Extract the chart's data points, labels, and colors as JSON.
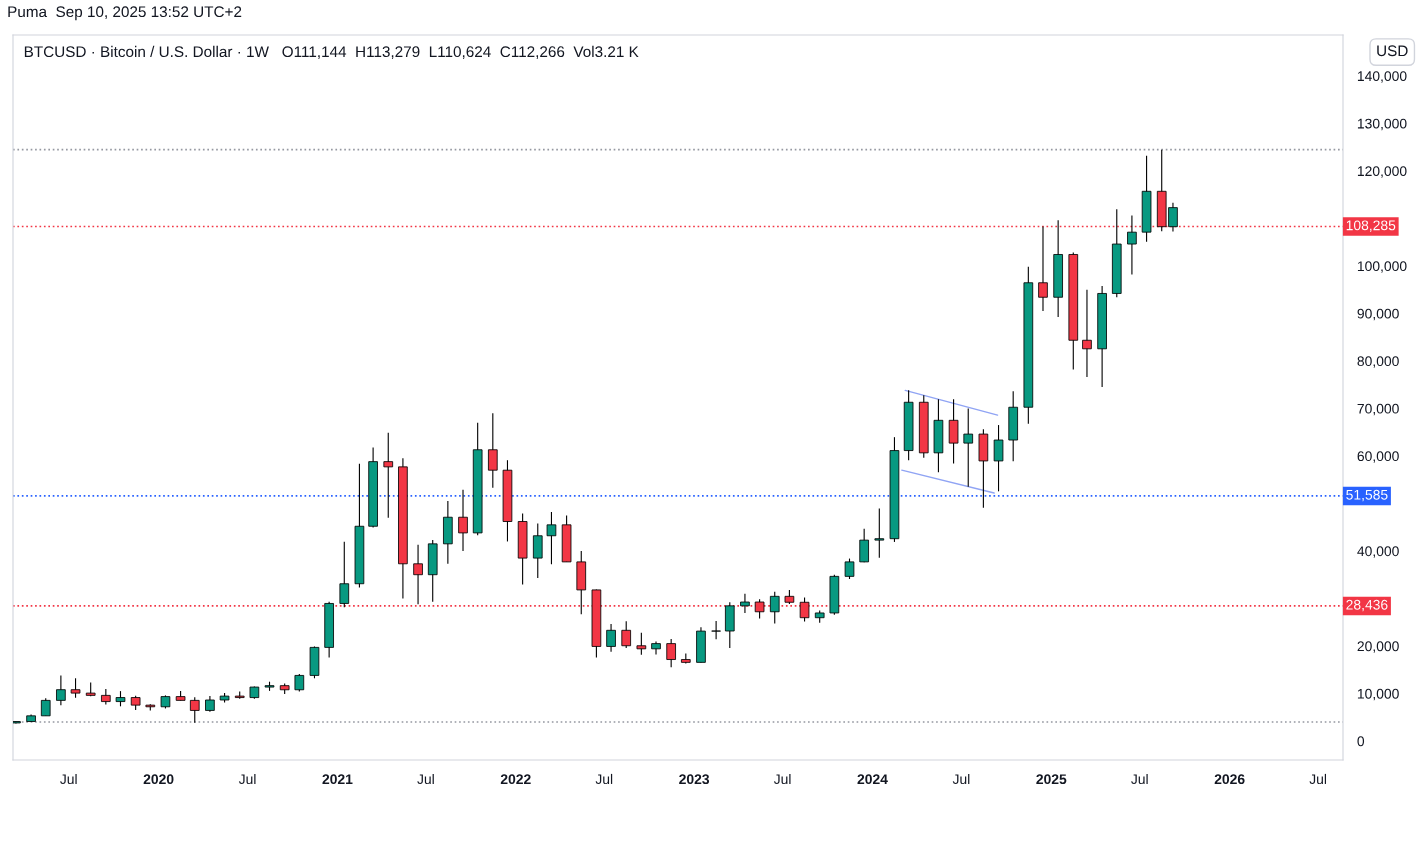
{
  "chart_data": {
    "type": "candlestick",
    "title": "BTCUSD · Bitcoin / U.S. Dollar · 1W   O111,144  H113,279  L110,624  C112,266  Vol3.21 K",
    "annotations": [
      "Puma  Sep 10, 2025 13:52 UTC+2",
      "USD"
    ],
    "x": [
      "2019-03-15",
      "2019-04-15",
      "2019-05-15",
      "2019-06-15",
      "2019-07-15",
      "2019-08-15",
      "2019-09-15",
      "2019-10-15",
      "2019-11-15",
      "2019-12-15",
      "2020-01-15",
      "2020-02-15",
      "2020-03-15",
      "2020-04-15",
      "2020-05-15",
      "2020-06-15",
      "2020-07-15",
      "2020-08-15",
      "2020-09-15",
      "2020-10-15",
      "2020-11-15",
      "2020-12-15",
      "2021-01-15",
      "2021-02-15",
      "2021-03-15",
      "2021-04-15",
      "2021-05-15",
      "2021-06-15",
      "2021-07-15",
      "2021-08-15",
      "2021-09-15",
      "2021-10-15",
      "2021-11-15",
      "2021-12-15",
      "2022-01-15",
      "2022-02-15",
      "2022-03-15",
      "2022-04-15",
      "2022-05-15",
      "2022-06-15",
      "2022-07-15",
      "2022-08-15",
      "2022-09-15",
      "2022-10-15",
      "2022-11-15",
      "2022-12-15",
      "2023-01-15",
      "2023-02-15",
      "2023-03-15",
      "2023-04-15",
      "2023-05-15",
      "2023-06-15",
      "2023-07-15",
      "2023-08-15",
      "2023-09-15",
      "2023-10-15",
      "2023-11-15",
      "2023-12-15",
      "2024-01-15",
      "2024-02-15",
      "2024-03-15",
      "2024-04-15",
      "2024-05-15",
      "2024-06-15",
      "2024-07-15",
      "2024-08-15",
      "2024-09-15",
      "2024-10-15",
      "2024-11-15",
      "2024-12-15",
      "2025-01-15",
      "2025-02-15",
      "2025-03-15",
      "2025-04-15",
      "2025-05-15",
      "2025-06-15",
      "2025-07-15",
      "2025-08-15",
      "2025-09-07"
    ],
    "colors": [
      "#089981",
      "#089981",
      "#089981",
      "#089981",
      "#f23645",
      "#f23645",
      "#f23645",
      "#089981",
      "#f23645",
      "#f23645",
      "#089981",
      "#f23645",
      "#f23645",
      "#089981",
      "#089981",
      "#f23645",
      "#089981",
      "#089981",
      "#f23645",
      "#089981",
      "#089981",
      "#089981",
      "#089981",
      "#089981",
      "#089981",
      "#f23645",
      "#f23645",
      "#f23645",
      "#089981",
      "#089981",
      "#f23645",
      "#089981",
      "#f23645",
      "#f23645",
      "#f23645",
      "#089981",
      "#089981",
      "#f23645",
      "#f23645",
      "#f23645",
      "#089981",
      "#f23645",
      "#f23645",
      "#089981",
      "#f23645",
      "#f23645",
      "#089981",
      "#089981",
      "#089981",
      "#089981",
      "#f23645",
      "#089981",
      "#f23645",
      "#f23645",
      "#089981",
      "#089981",
      "#089981",
      "#089981",
      "#089981",
      "#089981",
      "#089981",
      "#f23645",
      "#089981",
      "#f23645",
      "#089981",
      "#f23645",
      "#089981",
      "#089981",
      "#089981",
      "#f23645",
      "#089981",
      "#f23645",
      "#f23645",
      "#089981",
      "#089981",
      "#089981",
      "#089981",
      "#f23645",
      "#089981"
    ],
    "ohlc": [
      [
        3800,
        4100,
        3700,
        4100
      ],
      [
        4100,
        5600,
        4050,
        5300
      ],
      [
        5300,
        9000,
        5300,
        8550
      ],
      [
        8550,
        13800,
        7500,
        10800
      ],
      [
        10800,
        13200,
        9100,
        10080
      ],
      [
        10080,
        12300,
        9400,
        9600
      ],
      [
        9600,
        10950,
        7700,
        8300
      ],
      [
        8300,
        10500,
        7300,
        9150
      ],
      [
        9150,
        9500,
        6500,
        7550
      ],
      [
        7550,
        7750,
        6430,
        7200
      ],
      [
        7200,
        9600,
        6850,
        9350
      ],
      [
        9350,
        10500,
        8500,
        8550
      ],
      [
        8550,
        9200,
        3850,
        6430
      ],
      [
        6430,
        9450,
        6150,
        8630
      ],
      [
        8630,
        10080,
        8100,
        9450
      ],
      [
        9450,
        10400,
        8900,
        9140
      ],
      [
        9140,
        11450,
        8900,
        11350
      ],
      [
        11350,
        12480,
        10550,
        11650
      ],
      [
        11650,
        12080,
        9880,
        10780
      ],
      [
        10780,
        14100,
        10400,
        13800
      ],
      [
        13800,
        19900,
        13200,
        19700
      ],
      [
        19700,
        29300,
        17600,
        28950
      ],
      [
        28950,
        41950,
        28150,
        33100
      ],
      [
        33100,
        58350,
        32300,
        45200
      ],
      [
        45200,
        61780,
        44950,
        58800
      ],
      [
        58800,
        64900,
        47000,
        57700
      ],
      [
        57700,
        59500,
        30000,
        37300
      ],
      [
        37300,
        41300,
        28800,
        35000
      ],
      [
        35000,
        42300,
        29300,
        41500
      ],
      [
        41500,
        50500,
        37300,
        47100
      ],
      [
        47100,
        52900,
        40000,
        43800
      ],
      [
        43800,
        67000,
        43300,
        61300
      ],
      [
        61300,
        69000,
        53300,
        57000
      ],
      [
        57000,
        59100,
        42000,
        46200
      ],
      [
        46200,
        47900,
        32950,
        38500
      ],
      [
        38500,
        45800,
        34300,
        43200
      ],
      [
        43200,
        48200,
        37200,
        45500
      ],
      [
        45500,
        47450,
        37700,
        37700
      ],
      [
        37700,
        40000,
        26700,
        31800
      ],
      [
        31800,
        31900,
        17600,
        19900
      ],
      [
        19900,
        24650,
        18800,
        23300
      ],
      [
        23300,
        25200,
        19600,
        20050
      ],
      [
        20050,
        22800,
        18150,
        19400
      ],
      [
        19400,
        20950,
        18200,
        20500
      ],
      [
        20500,
        21450,
        15500,
        17150
      ],
      [
        17150,
        18400,
        16300,
        16550
      ],
      [
        16550,
        23950,
        16500,
        23130
      ],
      [
        23130,
        25250,
        21400,
        23150
      ],
      [
        23150,
        29200,
        19550,
        28450
      ],
      [
        28450,
        31000,
        26950,
        29250
      ],
      [
        29250,
        29850,
        25800,
        27200
      ],
      [
        27200,
        31400,
        24750,
        30450
      ],
      [
        30450,
        31800,
        28850,
        29200
      ],
      [
        29200,
        30200,
        25150,
        25950
      ],
      [
        25950,
        27450,
        24900,
        26950
      ],
      [
        26950,
        35000,
        26550,
        34650
      ],
      [
        34650,
        38400,
        34100,
        37700
      ],
      [
        37700,
        44700,
        37600,
        42280
      ],
      [
        42280,
        48950,
        38550,
        42580
      ],
      [
        42580,
        63950,
        41900,
        61130
      ],
      [
        61130,
        73800,
        59100,
        71300
      ],
      [
        71300,
        72750,
        59600,
        60650
      ],
      [
        60650,
        71950,
        56550,
        67500
      ],
      [
        67500,
        71950,
        58400,
        62700
      ],
      [
        62700,
        70000,
        53500,
        64600
      ],
      [
        64600,
        65600,
        49100,
        58950
      ],
      [
        58950,
        66500,
        52550,
        63350
      ],
      [
        63350,
        73600,
        58900,
        70250
      ],
      [
        70250,
        99800,
        66800,
        96450
      ],
      [
        96450,
        108300,
        90500,
        93400
      ],
      [
        93400,
        109600,
        89250,
        102400
      ],
      [
        102400,
        102800,
        78200,
        84350
      ],
      [
        84350,
        95000,
        76600,
        82550
      ],
      [
        82550,
        95750,
        74500,
        94200
      ],
      [
        94200,
        111900,
        93400,
        104600
      ],
      [
        104600,
        110600,
        98200,
        107100
      ],
      [
        107100,
        123200,
        105100,
        115700
      ],
      [
        115700,
        124450,
        107300,
        108250
      ],
      [
        108250,
        113300,
        107250,
        112266
      ]
    ],
    "series": [
      {
        "type": "line",
        "color": "#90a4f4",
        "x": [
          "2024-03-08",
          "2024-09-13"
        ],
        "values": [
          73800,
          68600
        ]
      },
      {
        "type": "line",
        "color": "#90a4f4",
        "x": [
          "2024-03-01",
          "2024-09-06"
        ],
        "values": [
          57000,
          52200
        ]
      }
    ],
    "ref_lines": [
      {
        "axis": "y",
        "value": 108285,
        "label": "108,285",
        "color": "#f23645",
        "line_style": "dotted"
      },
      {
        "axis": "y",
        "value": 51585,
        "label": "51,585",
        "color": "#2962ff",
        "line_style": "dotted"
      },
      {
        "axis": "y",
        "value": 28436,
        "label": "28,436",
        "color": "#f23645",
        "line_style": "dotted"
      },
      {
        "axis": "y",
        "value": 124457,
        "color": "#9598a1",
        "line_style": "dotted"
      },
      {
        "axis": "y",
        "value": 4000,
        "color": "#9598a1",
        "line_style": "dotted"
      }
    ],
    "xlim": [
      "2019-03-09",
      "2026-08-21"
    ],
    "xticks": [
      {
        "value": "2019-07-01",
        "label": "Jul"
      },
      {
        "value": "2020-01-01",
        "label": "2020"
      },
      {
        "value": "2020-07-01",
        "label": "Jul"
      },
      {
        "value": "2021-01-01",
        "label": "2021"
      },
      {
        "value": "2021-07-01",
        "label": "Jul"
      },
      {
        "value": "2022-01-01",
        "label": "2022"
      },
      {
        "value": "2022-07-01",
        "label": "Jul"
      },
      {
        "value": "2023-01-01",
        "label": "2023"
      },
      {
        "value": "2023-07-01",
        "label": "Jul"
      },
      {
        "value": "2024-01-01",
        "label": "2024"
      },
      {
        "value": "2024-07-01",
        "label": "Jul"
      },
      {
        "value": "2025-01-01",
        "label": "2025"
      },
      {
        "value": "2025-07-01",
        "label": "Jul"
      },
      {
        "value": "2026-01-01",
        "label": "2026"
      },
      {
        "value": "2026-07-01",
        "label": "Jul"
      }
    ],
    "ylim": [
      -4000,
      148600
    ],
    "yticks": [
      0,
      {
        "value": 10000,
        "label": "10,000"
      },
      {
        "value": 20000,
        "label": "20,000"
      },
      {
        "value": 40000,
        "label": "40,000"
      },
      {
        "value": 60000,
        "label": "60,000"
      },
      {
        "value": 70000,
        "label": "70,000"
      },
      {
        "value": 80000,
        "label": "80,000"
      },
      {
        "value": 90000,
        "label": "90,000"
      },
      {
        "value": 100000,
        "label": "100,000"
      },
      {
        "value": 120000,
        "label": "120,000"
      },
      {
        "value": 130000,
        "label": "130,000"
      },
      {
        "value": 140000,
        "label": "140,000"
      }
    ],
    "grid": false,
    "legend": false
  }
}
